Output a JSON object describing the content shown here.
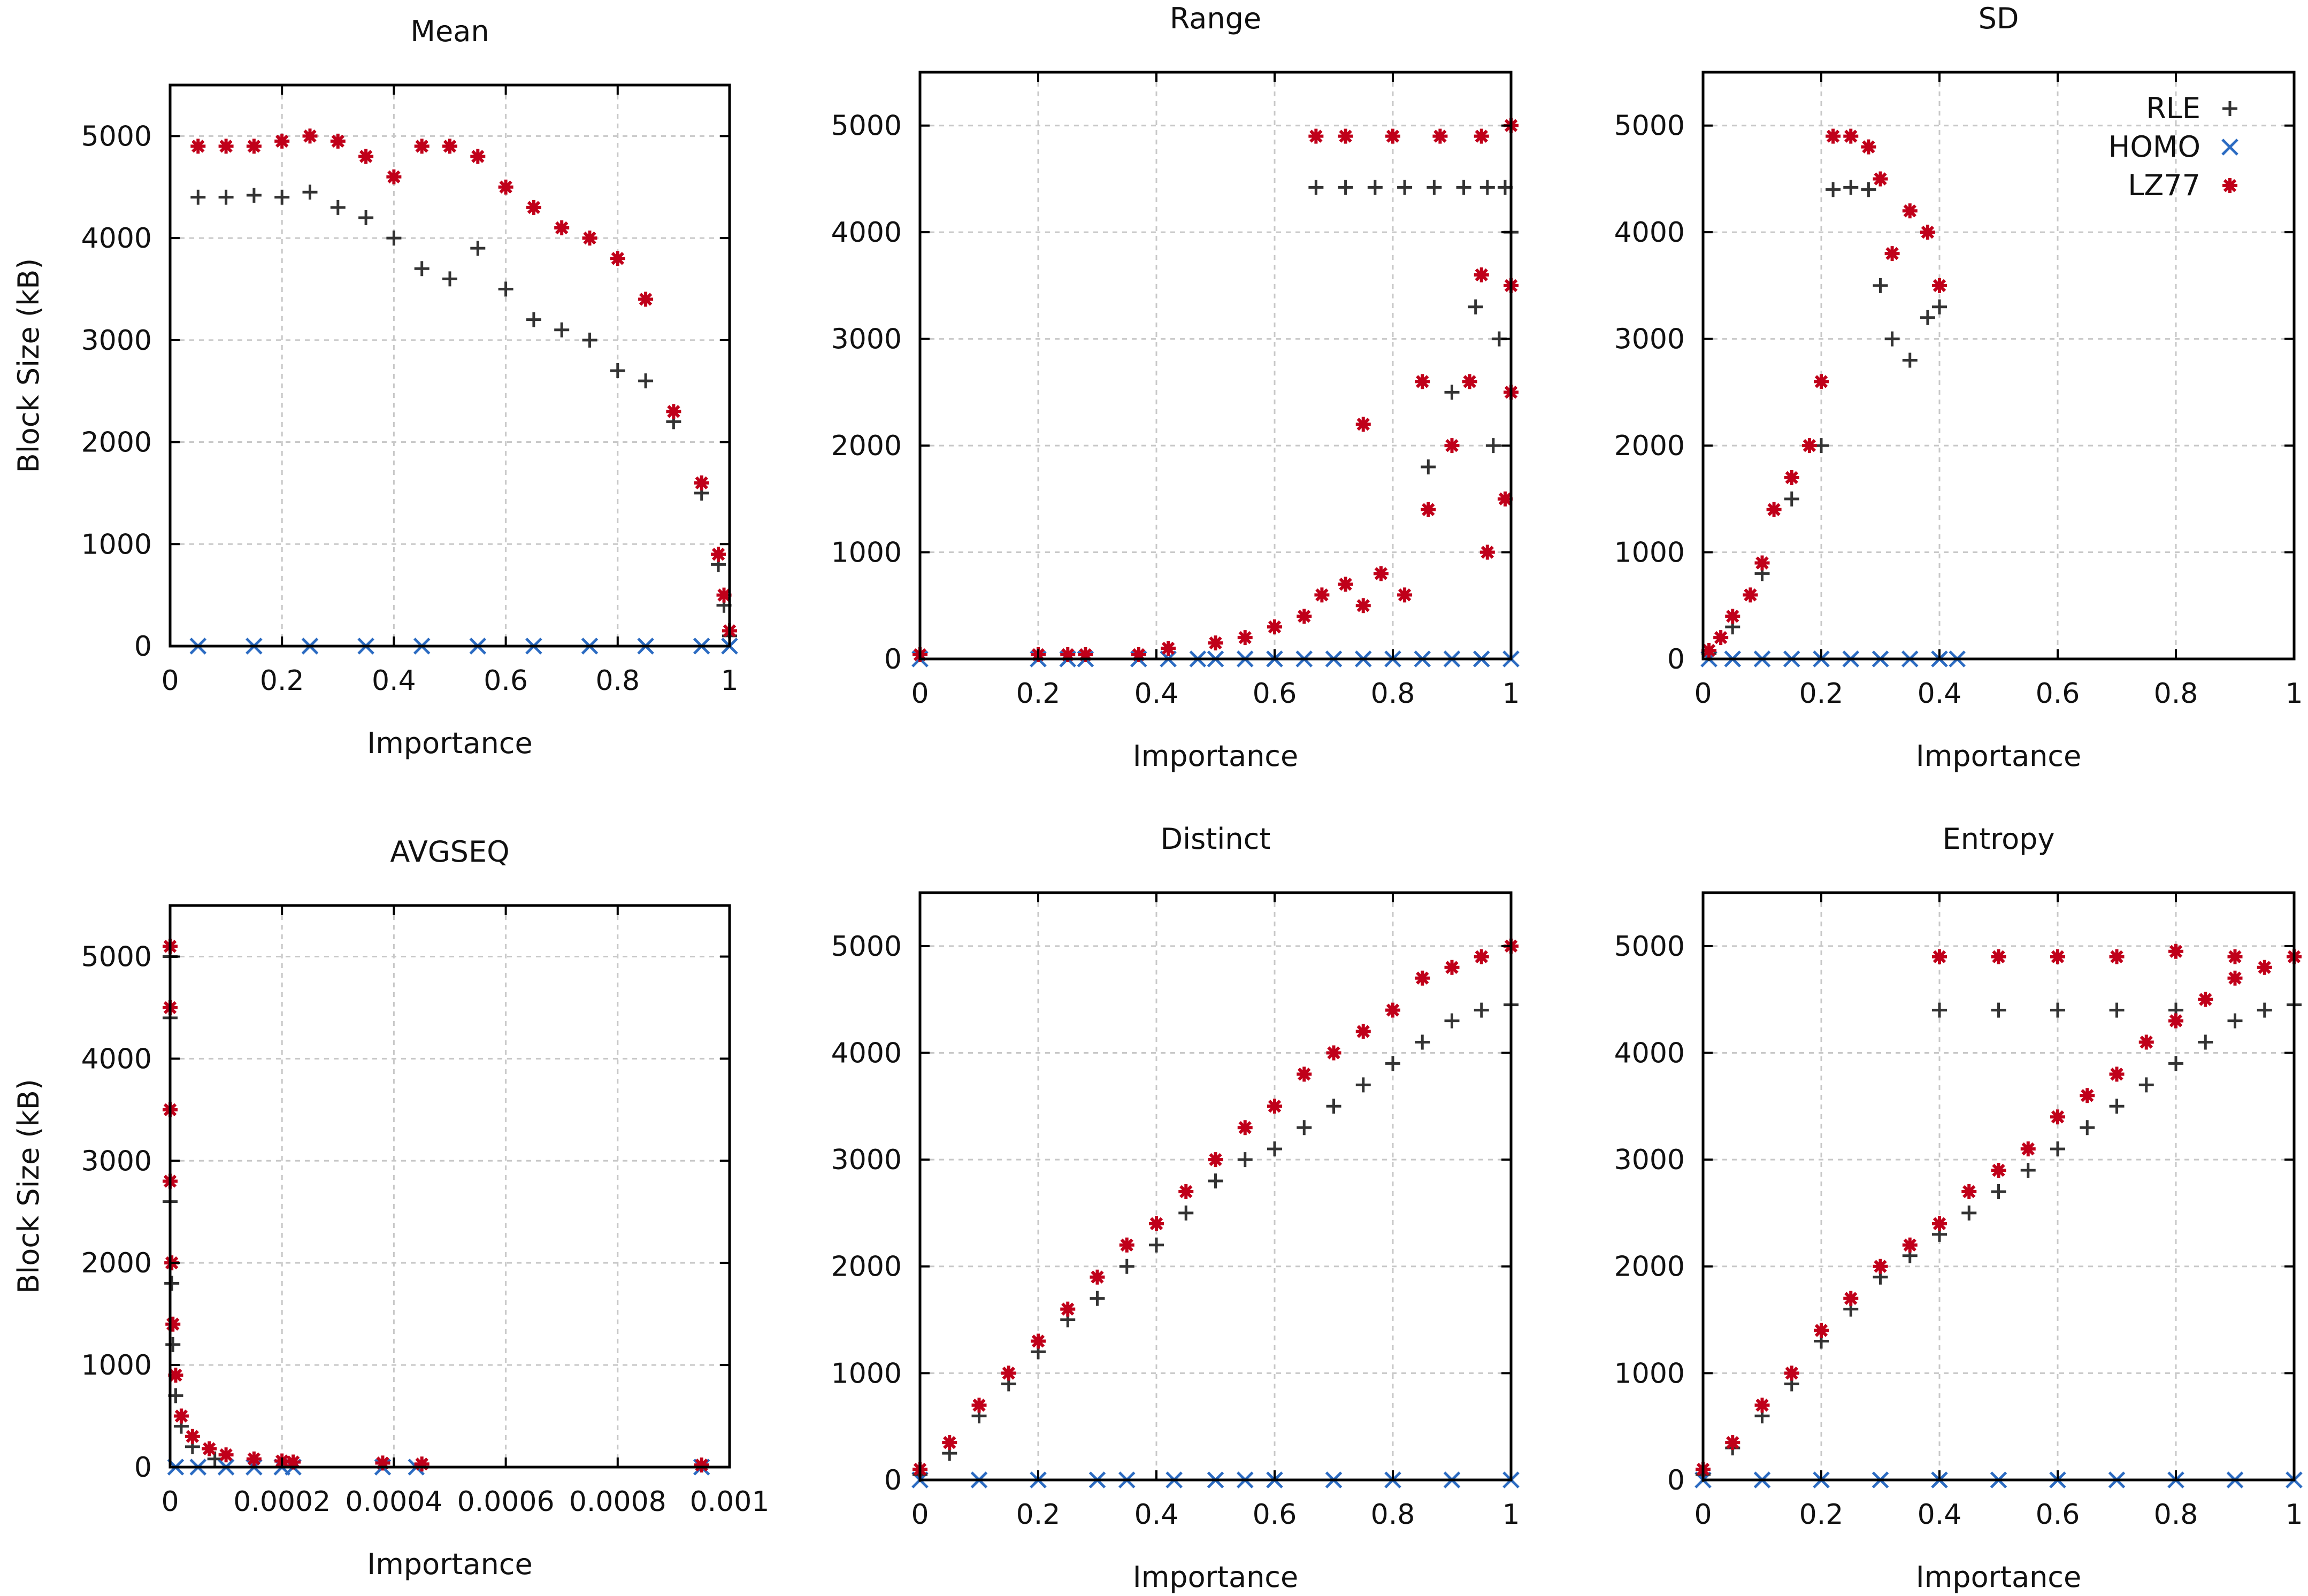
{
  "chart_data": [
    {
      "type": "scatter",
      "title": "Mean",
      "xlabel": "Importance",
      "ylabel": "Block Size (kB)",
      "xlim": [
        0,
        1
      ],
      "ylim": [
        0,
        5500
      ],
      "xticks": [
        0,
        0.2,
        0.4,
        0.6,
        0.8,
        1
      ],
      "xtick_labels": [
        "0",
        "0.2",
        "0.4",
        "0.6",
        "0.8",
        "1"
      ],
      "yticks": [
        0,
        1000,
        2000,
        3000,
        4000,
        5000
      ],
      "ytick_labels": [
        "0",
        "1000",
        "2000",
        "3000",
        "4000",
        "5000"
      ],
      "grid": true,
      "series": [
        {
          "name": "RLE",
          "x": [
            0.05,
            0.1,
            0.15,
            0.2,
            0.25,
            0.3,
            0.35,
            0.4,
            0.45,
            0.5,
            0.55,
            0.6,
            0.65,
            0.7,
            0.75,
            0.8,
            0.85,
            0.9,
            0.95,
            0.98,
            0.99,
            1.0
          ],
          "y": [
            4400,
            4400,
            4420,
            4400,
            4450,
            4300,
            4200,
            4000,
            3700,
            3600,
            3900,
            3500,
            3200,
            3100,
            3000,
            2700,
            2600,
            2200,
            1500,
            800,
            400,
            100
          ]
        },
        {
          "name": "HOMO",
          "x": [
            0.05,
            0.15,
            0.25,
            0.35,
            0.45,
            0.55,
            0.65,
            0.75,
            0.85,
            0.95,
            1.0
          ],
          "y": [
            0,
            0,
            0,
            0,
            0,
            0,
            0,
            0,
            0,
            0,
            0
          ]
        },
        {
          "name": "LZ77",
          "x": [
            0.05,
            0.1,
            0.15,
            0.2,
            0.25,
            0.3,
            0.35,
            0.4,
            0.45,
            0.5,
            0.55,
            0.6,
            0.65,
            0.7,
            0.75,
            0.8,
            0.85,
            0.9,
            0.95,
            0.98,
            0.99,
            1.0
          ],
          "y": [
            4900,
            4900,
            4900,
            4950,
            5000,
            4950,
            4800,
            4600,
            4900,
            4900,
            4800,
            4500,
            4300,
            4100,
            4000,
            3800,
            3400,
            2300,
            1600,
            900,
            500,
            150
          ]
        }
      ]
    },
    {
      "type": "scatter",
      "title": "Range",
      "xlabel": "Importance",
      "ylabel": "",
      "xlim": [
        0,
        1
      ],
      "ylim": [
        0,
        5500
      ],
      "xticks": [
        0,
        0.2,
        0.4,
        0.6,
        0.8,
        1
      ],
      "xtick_labels": [
        "0",
        "0.2",
        "0.4",
        "0.6",
        "0.8",
        "1"
      ],
      "yticks": [
        0,
        1000,
        2000,
        3000,
        4000,
        5000
      ],
      "ytick_labels": [
        "0",
        "1000",
        "2000",
        "3000",
        "4000",
        "5000"
      ],
      "grid": true,
      "series": [
        {
          "name": "RLE",
          "x": [
            0.67,
            0.72,
            0.77,
            0.82,
            0.87,
            0.92,
            0.96,
            0.99,
            1.0,
            0.94,
            0.9,
            0.86,
            0.98,
            0.97
          ],
          "y": [
            4420,
            4420,
            4420,
            4420,
            4420,
            4420,
            4420,
            4420,
            4000,
            3300,
            2500,
            1800,
            3000,
            2000
          ]
        },
        {
          "name": "HOMO",
          "x": [
            0,
            0.2,
            0.25,
            0.28,
            0.37,
            0.42,
            0.47,
            0.5,
            0.55,
            0.6,
            0.65,
            0.7,
            0.75,
            0.8,
            0.85,
            0.9,
            0.95,
            1.0
          ],
          "y": [
            0,
            0,
            0,
            0,
            0,
            0,
            0,
            0,
            0,
            0,
            0,
            0,
            0,
            0,
            0,
            0,
            0,
            0
          ]
        },
        {
          "name": "LZ77",
          "x": [
            0,
            0.2,
            0.25,
            0.28,
            0.37,
            0.42,
            0.5,
            0.55,
            0.6,
            0.65,
            0.68,
            0.72,
            0.75,
            0.78,
            0.82,
            0.86,
            0.9,
            0.93,
            0.96,
            0.99,
            1.0,
            1.0,
            0.67,
            0.72,
            0.8,
            0.88,
            0.95,
            1.0,
            0.75,
            0.85,
            0.95
          ],
          "y": [
            40,
            40,
            40,
            40,
            40,
            100,
            150,
            200,
            300,
            400,
            600,
            700,
            500,
            800,
            600,
            1400,
            2000,
            2600,
            1000,
            1500,
            3500,
            2500,
            4900,
            4900,
            4900,
            4900,
            4900,
            5000,
            2200,
            2600,
            3600
          ]
        }
      ]
    },
    {
      "type": "scatter",
      "title": "SD",
      "xlabel": "Importance",
      "ylabel": "",
      "xlim": [
        0,
        1
      ],
      "ylim": [
        0,
        5500
      ],
      "xticks": [
        0,
        0.2,
        0.4,
        0.6,
        0.8,
        1
      ],
      "xtick_labels": [
        "0",
        "0.2",
        "0.4",
        "0.6",
        "0.8",
        "1"
      ],
      "yticks": [
        0,
        1000,
        2000,
        3000,
        4000,
        5000
      ],
      "ytick_labels": [
        "0",
        "1000",
        "2000",
        "3000",
        "4000",
        "5000"
      ],
      "grid": true,
      "legend": {
        "position": "top-right",
        "entries": [
          "RLE",
          "HOMO",
          "LZ77"
        ]
      },
      "series": [
        {
          "name": "RLE",
          "x": [
            0.01,
            0.05,
            0.1,
            0.15,
            0.2,
            0.22,
            0.25,
            0.28,
            0.3,
            0.32,
            0.35,
            0.38,
            0.4
          ],
          "y": [
            50,
            300,
            800,
            1500,
            2000,
            4400,
            4420,
            4400,
            3500,
            3000,
            2800,
            3200,
            3300
          ]
        },
        {
          "name": "HOMO",
          "x": [
            0.01,
            0.05,
            0.1,
            0.15,
            0.2,
            0.25,
            0.3,
            0.35,
            0.4,
            0.43
          ],
          "y": [
            0,
            0,
            0,
            0,
            0,
            0,
            0,
            0,
            0,
            0
          ]
        },
        {
          "name": "LZ77",
          "x": [
            0.01,
            0.03,
            0.05,
            0.08,
            0.1,
            0.12,
            0.15,
            0.18,
            0.2,
            0.22,
            0.25,
            0.28,
            0.3,
            0.32,
            0.35,
            0.38,
            0.4
          ],
          "y": [
            80,
            200,
            400,
            600,
            900,
            1400,
            1700,
            2000,
            2600,
            4900,
            4900,
            4800,
            4500,
            3800,
            4200,
            4000,
            3500
          ]
        }
      ]
    },
    {
      "type": "scatter",
      "title": "AVGSEQ",
      "xlabel": "Importance",
      "ylabel": "Block Size (kB)",
      "xlim": [
        0,
        0.001
      ],
      "ylim": [
        0,
        5500
      ],
      "xticks": [
        0,
        0.0002,
        0.0004,
        0.0006,
        0.0008,
        0.001
      ],
      "xtick_labels": [
        "0",
        "0.0002",
        "0.0004",
        "0.0006",
        "0.0008",
        "0.001"
      ],
      "yticks": [
        0,
        1000,
        2000,
        3000,
        4000,
        5000
      ],
      "ytick_labels": [
        "0",
        "1000",
        "2000",
        "3000",
        "4000",
        "5000"
      ],
      "grid": true,
      "series": [
        {
          "name": "RLE",
          "x": [
            0,
            0,
            0,
            0,
            3e-06,
            5e-06,
            1e-05,
            2e-05,
            4e-05,
            8e-05
          ],
          "y": [
            5000,
            4400,
            3500,
            2600,
            1800,
            1200,
            700,
            400,
            200,
            80
          ]
        },
        {
          "name": "HOMO",
          "x": [
            1e-05,
            5e-05,
            0.0001,
            0.00015,
            0.0002,
            0.00022,
            0.00038,
            0.00044,
            0.00095
          ],
          "y": [
            0,
            0,
            0,
            0,
            0,
            0,
            0,
            0,
            0
          ]
        },
        {
          "name": "LZ77",
          "x": [
            0,
            0,
            0,
            0,
            3e-06,
            5e-06,
            1e-05,
            2e-05,
            4e-05,
            7e-05,
            0.0001,
            0.00015,
            0.0002,
            0.00022,
            0.00038,
            0.00045,
            0.00095
          ],
          "y": [
            5100,
            4500,
            3500,
            2800,
            2000,
            1400,
            900,
            500,
            300,
            180,
            120,
            80,
            60,
            50,
            40,
            30,
            20
          ]
        }
      ]
    },
    {
      "type": "scatter",
      "title": "Distinct",
      "xlabel": "Importance",
      "ylabel": "",
      "xlim": [
        0,
        1
      ],
      "ylim": [
        0,
        5500
      ],
      "xticks": [
        0,
        0.2,
        0.4,
        0.6,
        0.8,
        1
      ],
      "xtick_labels": [
        "0",
        "0.2",
        "0.4",
        "0.6",
        "0.8",
        "1"
      ],
      "yticks": [
        0,
        1000,
        2000,
        3000,
        4000,
        5000
      ],
      "ytick_labels": [
        "0",
        "1000",
        "2000",
        "3000",
        "4000",
        "5000"
      ],
      "grid": true,
      "series": [
        {
          "name": "RLE",
          "x": [
            0,
            0.05,
            0.1,
            0.15,
            0.2,
            0.25,
            0.3,
            0.35,
            0.4,
            0.45,
            0.5,
            0.55,
            0.6,
            0.65,
            0.7,
            0.75,
            0.8,
            0.85,
            0.9,
            0.95,
            1.0
          ],
          "y": [
            50,
            250,
            600,
            900,
            1200,
            1500,
            1700,
            2000,
            2200,
            2500,
            2800,
            3000,
            3100,
            3300,
            3500,
            3700,
            3900,
            4100,
            4300,
            4400,
            4450
          ]
        },
        {
          "name": "HOMO",
          "x": [
            0,
            0.1,
            0.2,
            0.3,
            0.35,
            0.43,
            0.5,
            0.55,
            0.6,
            0.7,
            0.8,
            0.9,
            1.0
          ],
          "y": [
            0,
            0,
            0,
            0,
            0,
            0,
            0,
            0,
            0,
            0,
            0,
            0,
            0
          ]
        },
        {
          "name": "LZ77",
          "x": [
            0,
            0.05,
            0.1,
            0.15,
            0.2,
            0.25,
            0.3,
            0.35,
            0.4,
            0.45,
            0.5,
            0.55,
            0.6,
            0.65,
            0.7,
            0.75,
            0.8,
            0.85,
            0.9,
            0.95,
            1.0
          ],
          "y": [
            100,
            350,
            700,
            1000,
            1300,
            1600,
            1900,
            2200,
            2400,
            2700,
            3000,
            3300,
            3500,
            3800,
            4000,
            4200,
            4400,
            4700,
            4800,
            4900,
            5000
          ]
        }
      ]
    },
    {
      "type": "scatter",
      "title": "Entropy",
      "xlabel": "Importance",
      "ylabel": "",
      "xlim": [
        0,
        1
      ],
      "ylim": [
        0,
        5500
      ],
      "xticks": [
        0,
        0.2,
        0.4,
        0.6,
        0.8,
        1
      ],
      "xtick_labels": [
        "0",
        "0.2",
        "0.4",
        "0.6",
        "0.8",
        "1"
      ],
      "yticks": [
        0,
        1000,
        2000,
        3000,
        4000,
        5000
      ],
      "ytick_labels": [
        "0",
        "1000",
        "2000",
        "3000",
        "4000",
        "5000"
      ],
      "grid": true,
      "series": [
        {
          "name": "RLE",
          "x": [
            0,
            0.05,
            0.1,
            0.15,
            0.2,
            0.25,
            0.3,
            0.35,
            0.4,
            0.45,
            0.5,
            0.55,
            0.6,
            0.65,
            0.7,
            0.75,
            0.8,
            0.85,
            0.9,
            0.95,
            1.0,
            0.4,
            0.5,
            0.6,
            0.7,
            0.8
          ],
          "y": [
            50,
            300,
            600,
            900,
            1300,
            1600,
            1900,
            2100,
            2300,
            2500,
            2700,
            2900,
            3100,
            3300,
            3500,
            3700,
            3900,
            4100,
            4300,
            4400,
            4450,
            4400,
            4400,
            4400,
            4400,
            4400
          ]
        },
        {
          "name": "HOMO",
          "x": [
            0,
            0.1,
            0.2,
            0.3,
            0.4,
            0.5,
            0.6,
            0.7,
            0.8,
            0.9,
            1.0
          ],
          "y": [
            0,
            0,
            0,
            0,
            0,
            0,
            0,
            0,
            0,
            0,
            0
          ]
        },
        {
          "name": "LZ77",
          "x": [
            0,
            0.05,
            0.1,
            0.15,
            0.2,
            0.25,
            0.3,
            0.35,
            0.4,
            0.45,
            0.5,
            0.55,
            0.6,
            0.65,
            0.7,
            0.75,
            0.8,
            0.85,
            0.9,
            0.95,
            1.0,
            0.4,
            0.5,
            0.6,
            0.7,
            0.8,
            0.9
          ],
          "y": [
            100,
            350,
            700,
            1000,
            1400,
            1700,
            2000,
            2200,
            2400,
            2700,
            2900,
            3100,
            3400,
            3600,
            3800,
            4100,
            4300,
            4500,
            4700,
            4800,
            4900,
            4900,
            4900,
            4900,
            4900,
            4950,
            4900
          ]
        }
      ]
    }
  ],
  "series_colors": {
    "RLE": "#333333",
    "HOMO": "#2b6bc2",
    "LZ77": "#c0001a"
  },
  "series_markers": {
    "RLE": "plus",
    "HOMO": "cross",
    "LZ77": "asterisk"
  }
}
